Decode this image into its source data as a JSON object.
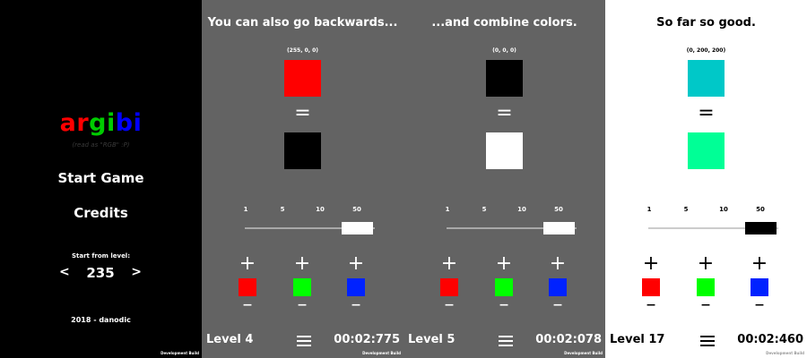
{
  "menu": {
    "logo": [
      {
        "text": "ar",
        "color": "#ff0000"
      },
      {
        "text": "gi",
        "color": "#00cc00"
      },
      {
        "text": "bi",
        "color": "#0000ff"
      }
    ],
    "tagline": "(read as \"RGB\" :P)",
    "start_game": "Start Game",
    "credits": "Credits",
    "start_from_label": "Start from level:",
    "start_level": "235",
    "left_arrow": "<",
    "right_arrow": ">",
    "footer": "2018 - danodic",
    "dev_build": "Development Build"
  },
  "levels": [
    {
      "title": "You can also go backwards...",
      "target_rgb_text": "(255, 0, 0)",
      "target_color": "#ff0000",
      "current_color": "#000000",
      "equals": "=",
      "step_values": [
        "1",
        "5",
        "10",
        "50"
      ],
      "selected_step": "50",
      "plus": "+",
      "minus": "–",
      "channel_colors": [
        "#ff0000",
        "#00ff00",
        "#0022ff"
      ],
      "level_label": "Level 4",
      "timer": "00:02:775",
      "dev_build": "Development Build",
      "theme": "dark",
      "bg": "#636363",
      "fg": "#ffffff",
      "track": "#a8a8a8",
      "thumb": "#ffffff"
    },
    {
      "title": "...and combine colors.",
      "target_rgb_text": "(0, 0, 0)",
      "target_color": "#000000",
      "current_color": "#ffffff",
      "equals": "=",
      "step_values": [
        "1",
        "5",
        "10",
        "50"
      ],
      "selected_step": "50",
      "plus": "+",
      "minus": "–",
      "channel_colors": [
        "#ff0000",
        "#00ff00",
        "#0022ff"
      ],
      "level_label": "Level 5",
      "timer": "00:02:078",
      "dev_build": "Development Build",
      "theme": "dark",
      "bg": "#636363",
      "fg": "#ffffff",
      "track": "#a8a8a8",
      "thumb": "#ffffff"
    },
    {
      "title": "So far so good.",
      "target_rgb_text": "(0, 200, 200)",
      "target_color": "#00c8c8",
      "current_color": "#00ff96",
      "equals": "=",
      "step_values": [
        "1",
        "5",
        "10",
        "50"
      ],
      "selected_step": "50",
      "plus": "+",
      "minus": "–",
      "channel_colors": [
        "#ff0000",
        "#00ff00",
        "#0022ff"
      ],
      "level_label": "Level 17",
      "timer": "00:02:460",
      "dev_build": "Development Build",
      "theme": "light",
      "bg": "#ffffff",
      "fg": "#000000",
      "track": "#cccccc",
      "thumb": "#000000"
    }
  ]
}
